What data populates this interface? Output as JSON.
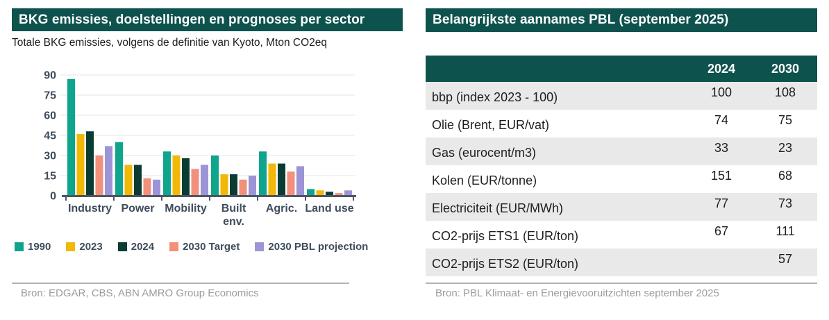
{
  "left_panel": {
    "title": "BKG emissies, doelstellingen en prognoses per sector",
    "subtitle": "Totale BKG emissies, volgens de definitie van Kyoto, Mton CO2eq",
    "source": "Bron: EDGAR, CBS, ABN AMRO Group Economics"
  },
  "chart_data": {
    "type": "bar",
    "title": "BKG emissies, doelstellingen en prognoses per sector",
    "subtitle": "Totale BKG emissies, volgens de definitie van Kyoto, Mton CO2eq",
    "ylabel": "Mton CO2eq",
    "categories": [
      "Industry",
      "Power",
      "Mobility",
      "Built\nenv.",
      "Agric.",
      "Land use"
    ],
    "series": [
      {
        "name": "1990",
        "color": "#0FA48C",
        "values": [
          87,
          40,
          33,
          30,
          33,
          5
        ]
      },
      {
        "name": "2023",
        "color": "#F1B807",
        "values": [
          46,
          23,
          30,
          16,
          24,
          4
        ]
      },
      {
        "name": "2024",
        "color": "#0B3C33",
        "values": [
          48,
          23,
          28,
          16,
          24,
          3
        ]
      },
      {
        "name": "2030 Target",
        "color": "#F2907C",
        "values": [
          30,
          13,
          20,
          12,
          18,
          2
        ]
      },
      {
        "name": "2030 PBL projection",
        "color": "#9C94D6",
        "values": [
          37,
          12,
          23,
          15,
          22,
          4
        ]
      }
    ],
    "ylim": [
      0,
      90
    ],
    "yticks": [
      0,
      15,
      30,
      45,
      60,
      75,
      90
    ],
    "grid": true,
    "legend_position": "bottom"
  },
  "right_panel": {
    "title": "Belangrijkste aannames PBL (september 2025)",
    "source": "Bron: PBL Klimaat- en Energievooruitzichten september 2025",
    "table": {
      "columns": [
        "2024",
        "2030"
      ],
      "rows": [
        {
          "label": "bbp (index 2023 - 100)",
          "values": [
            "100",
            "108"
          ]
        },
        {
          "label": "Olie (Brent, EUR/vat)",
          "values": [
            "74",
            "75"
          ]
        },
        {
          "label": "Gas (eurocent/m3)",
          "values": [
            "33",
            "23"
          ]
        },
        {
          "label": "Kolen (EUR/tonne)",
          "values": [
            "151",
            "68"
          ]
        },
        {
          "label": "Electriciteit (EUR/MWh)",
          "values": [
            "77",
            "73"
          ]
        },
        {
          "label": "CO2-prijs ETS1 (EUR/ton)",
          "values": [
            "67",
            "111"
          ]
        },
        {
          "label": "CO2-prijs ETS2 (EUR/ton)",
          "values": [
            "",
            "57"
          ]
        }
      ]
    }
  },
  "colors": {
    "header_teal": "#0E524E",
    "axis_text": "#3E4C5C",
    "grid_line": "#E4E4E7",
    "axis_line": "#4D5662",
    "row_alt_gray": "#E9E9E9",
    "source_gray": "#9C9C9C",
    "rule_gray": "#B3B3B3"
  }
}
